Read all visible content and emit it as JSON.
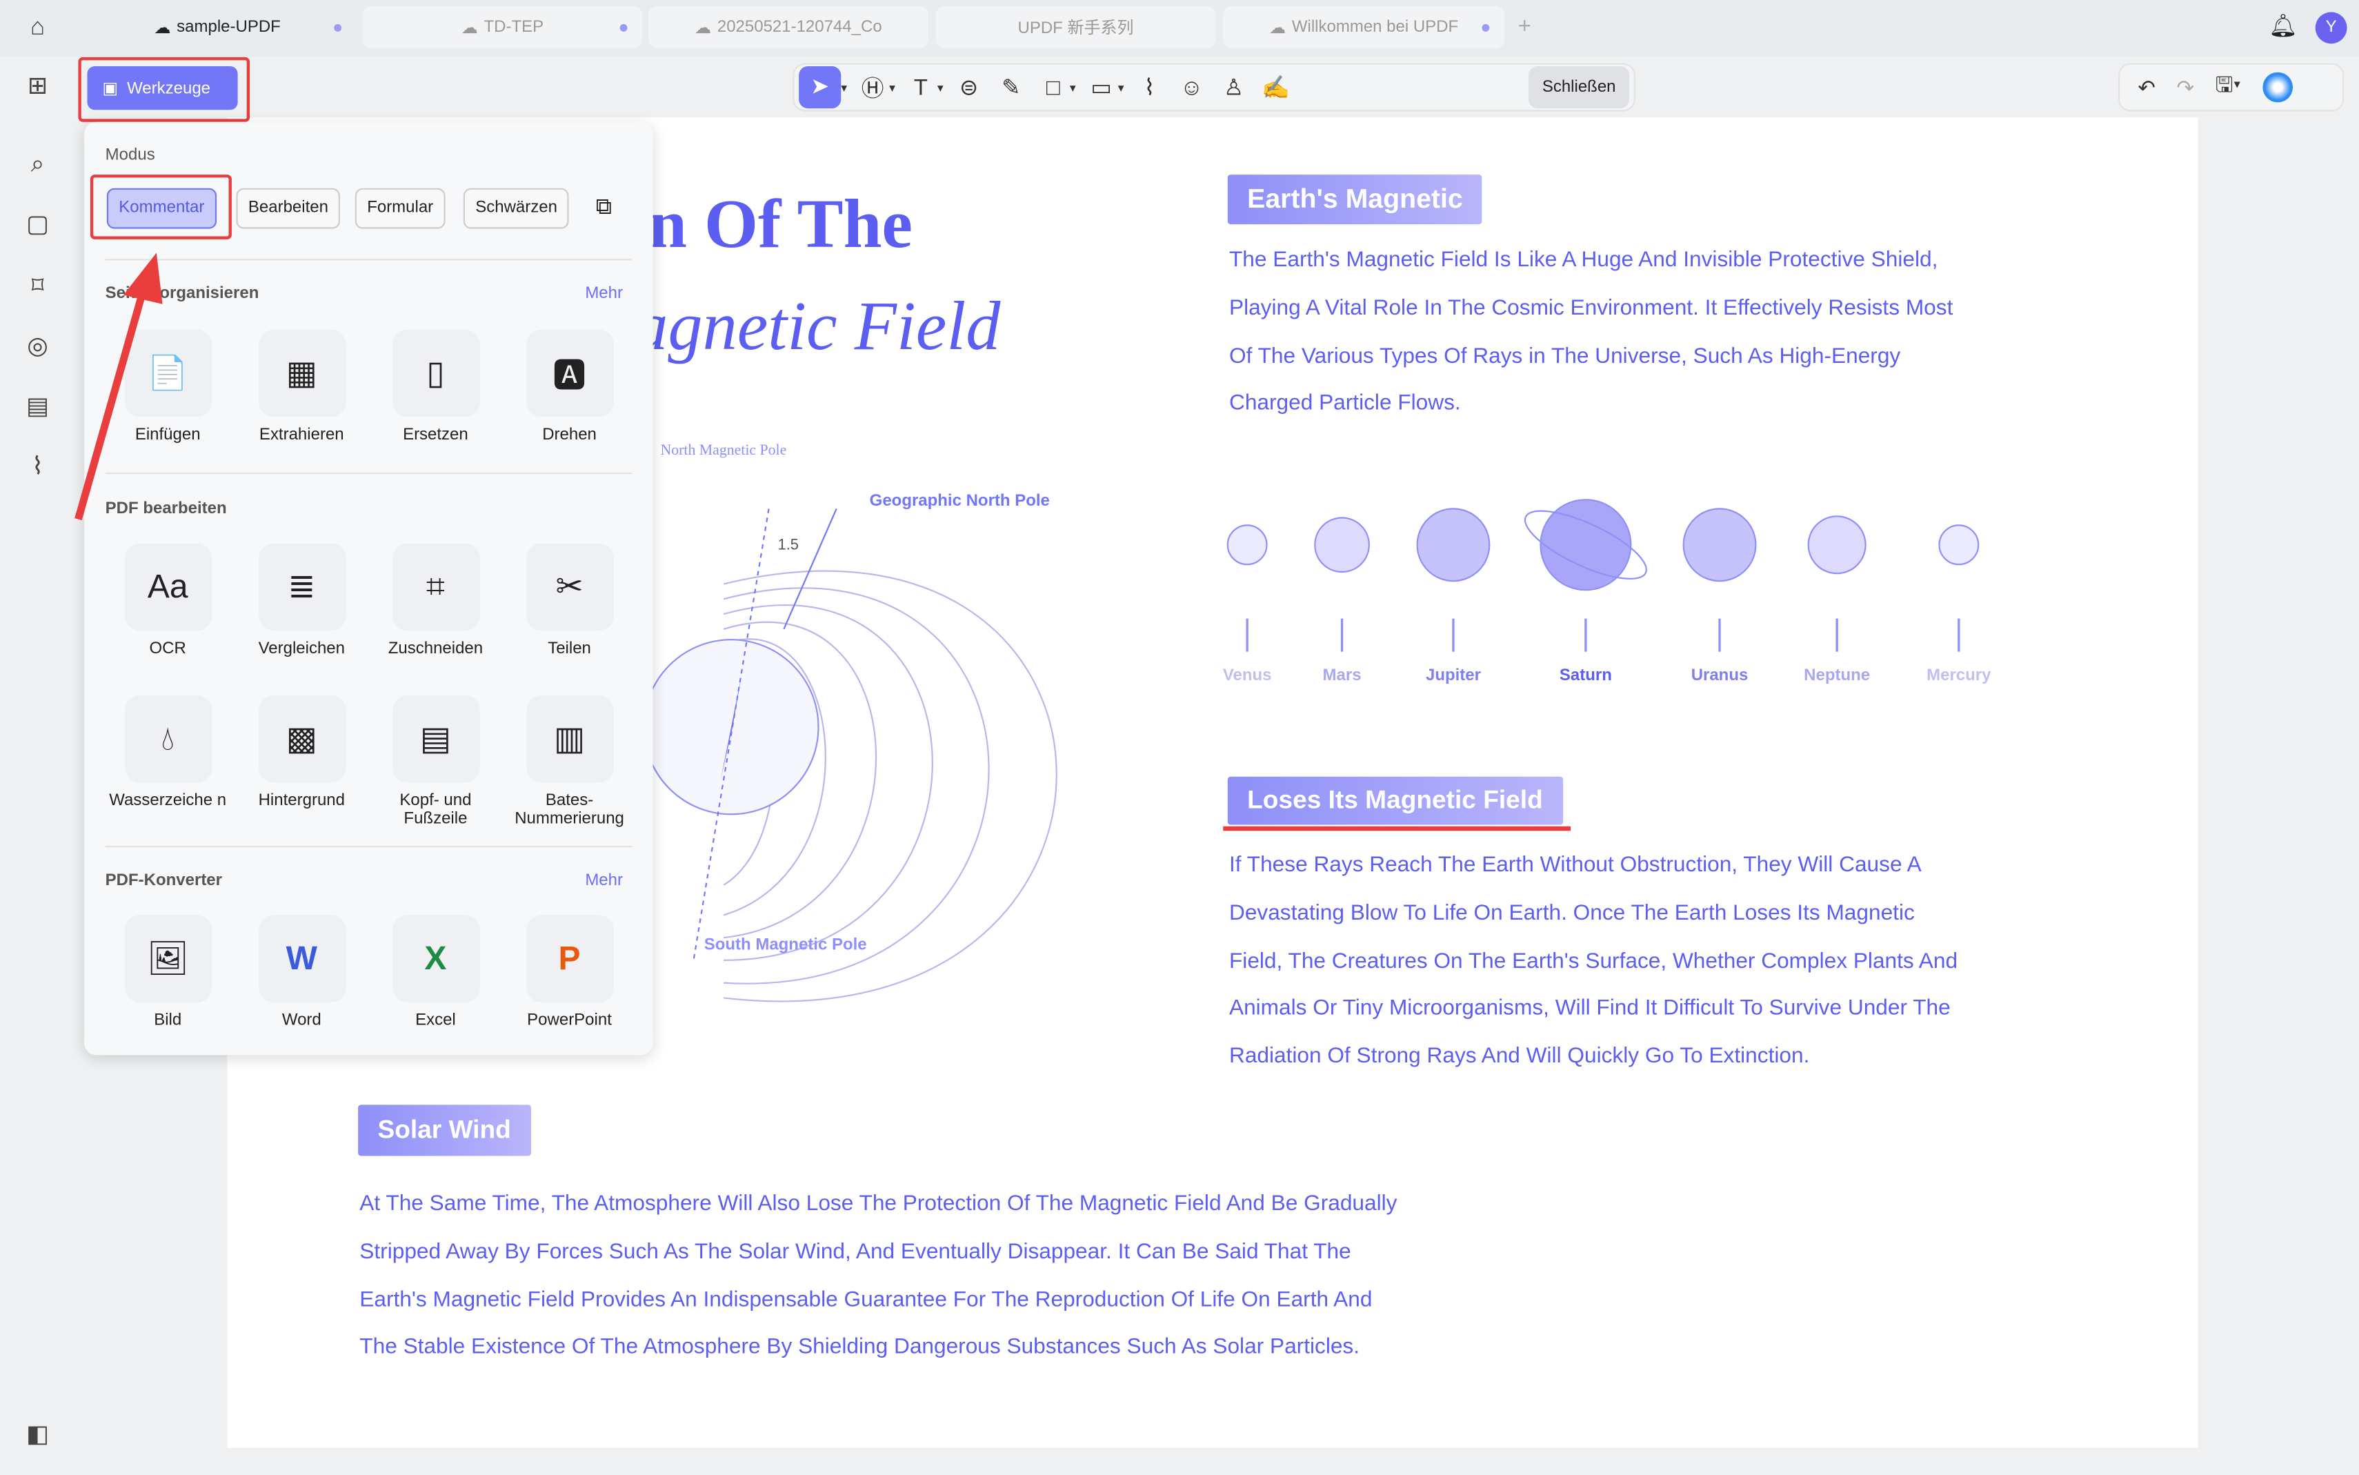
{
  "tabs": [
    {
      "label": "sample-UPDF",
      "cloud": true,
      "active": true
    },
    {
      "label": "TD-TEP",
      "cloud": true
    },
    {
      "label": "20250521-120744_Co",
      "cloud": true
    },
    {
      "label": "UPDF 新手系列",
      "cloud": false
    },
    {
      "label": "Willkommen bei UPDF",
      "cloud": true
    }
  ],
  "user_avatar": "Y",
  "toolbar": {
    "werkzeuge": "Werkzeuge",
    "close": "Schließen",
    "tools": [
      "select-icon",
      "highlight-icon",
      "text-icon",
      "comment-icon",
      "pen-icon",
      "rectangle-icon",
      "measure-icon",
      "attach-icon",
      "sticker-icon",
      "stamp-icon",
      "signature-icon"
    ]
  },
  "panel": {
    "mode_title": "Modus",
    "modes": [
      "Kommentar",
      "Bearbeiten",
      "Formular",
      "Schwärzen"
    ],
    "organize_title": "Seiten organisieren",
    "more": "Mehr",
    "organize": [
      "Einfügen",
      "Extrahieren",
      "Ersetzen",
      "Drehen"
    ],
    "edit_title": "PDF bearbeiten",
    "edit": [
      "OCR",
      "Vergleichen",
      "Zuschneiden",
      "Teilen",
      "Wasserzeiche n",
      "Hintergrund",
      "Kopf- und Fußzeile",
      "Bates-Nummerierung"
    ],
    "convert_title": "PDF-Konverter",
    "convert": [
      "Bild",
      "Word",
      "Excel",
      "PowerPoint"
    ]
  },
  "doc": {
    "title1": "n Of The",
    "title2": "agnetic Field",
    "diagram": {
      "north_mag": "North Magnetic Pole",
      "geo_north": "Geographic North Pole",
      "angle": "1.5",
      "south_mag": "South Magnetic Pole"
    },
    "h1": "Earth's Magnetic",
    "p1": [
      "The Earth's Magnetic Field Is Like A Huge And Invisible Protective Shield,",
      "Playing A Vital Role In The Cosmic Environment. It Effectively Resists Most",
      "Of The Various Types Of Rays in The Universe, Such As High-Energy",
      "Charged Particle Flows."
    ],
    "planets": [
      "Venus",
      "Mars",
      "Jupiter",
      "Saturn",
      "Uranus",
      "Neptune",
      "Mercury"
    ],
    "h2": "Loses Its Magnetic Field",
    "p2": [
      "If These Rays Reach The Earth Without Obstruction, They Will Cause A",
      "Devastating Blow To Life On Earth. Once The Earth Loses Its Magnetic",
      "Field, The Creatures On The Earth's Surface, Whether Complex Plants And",
      "Animals Or Tiny Microorganisms, Will Find It Difficult To Survive Under The",
      "Radiation Of Strong Rays And Will Quickly Go To Extinction."
    ],
    "h3": "Solar Wind",
    "p3": [
      "At The Same Time, The Atmosphere Will Also Lose The Protection Of The Magnetic Field And Be Gradually",
      "Stripped Away By Forces Such As The Solar Wind, And Eventually Disappear. It Can Be Said That The",
      "Earth's Magnetic Field Provides An Indispensable Guarantee For The Reproduction Of Life On Earth And",
      "The Stable Existence Of The Atmosphere By Shielding Dangerous Substances Such As Solar Particles."
    ]
  },
  "colors": {
    "accent": "#7277f7",
    "text_blue": "#5b5ef0",
    "annotation_red": "#ea3d3d"
  }
}
